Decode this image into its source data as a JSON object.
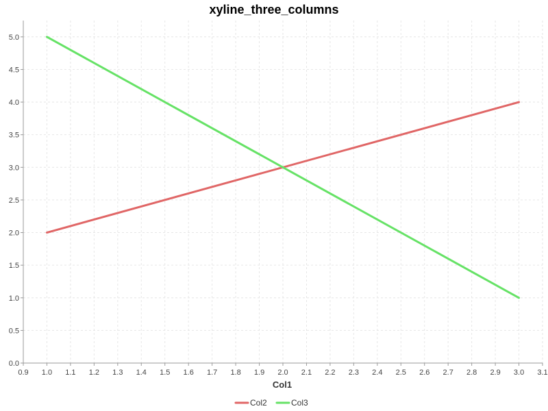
{
  "chart_data": {
    "type": "line",
    "title": "xyline_three_columns",
    "xlabel": "Col1",
    "ylabel": "",
    "xlim": [
      0.9,
      3.1
    ],
    "ylim": [
      0,
      5.25
    ],
    "x_ticks": [
      "0.9",
      "1.0",
      "1.1",
      "1.2",
      "1.3",
      "1.4",
      "1.5",
      "1.6",
      "1.7",
      "1.8",
      "1.9",
      "2.0",
      "2.1",
      "2.2",
      "2.3",
      "2.4",
      "2.5",
      "2.6",
      "2.7",
      "2.8",
      "2.9",
      "3.0",
      "3.1"
    ],
    "y_ticks": [
      "0.0",
      "0.5",
      "1.0",
      "1.5",
      "2.0",
      "2.5",
      "3.0",
      "3.5",
      "4.0",
      "4.5",
      "5.0"
    ],
    "grid": true,
    "legend_position": "bottom",
    "series": [
      {
        "name": "Col2",
        "color": "#e06666",
        "x": [
          1.0,
          3.0
        ],
        "y": [
          2.0,
          4.0
        ]
      },
      {
        "name": "Col3",
        "color": "#66e266",
        "x": [
          1.0,
          3.0
        ],
        "y": [
          5.0,
          1.0
        ]
      }
    ]
  }
}
